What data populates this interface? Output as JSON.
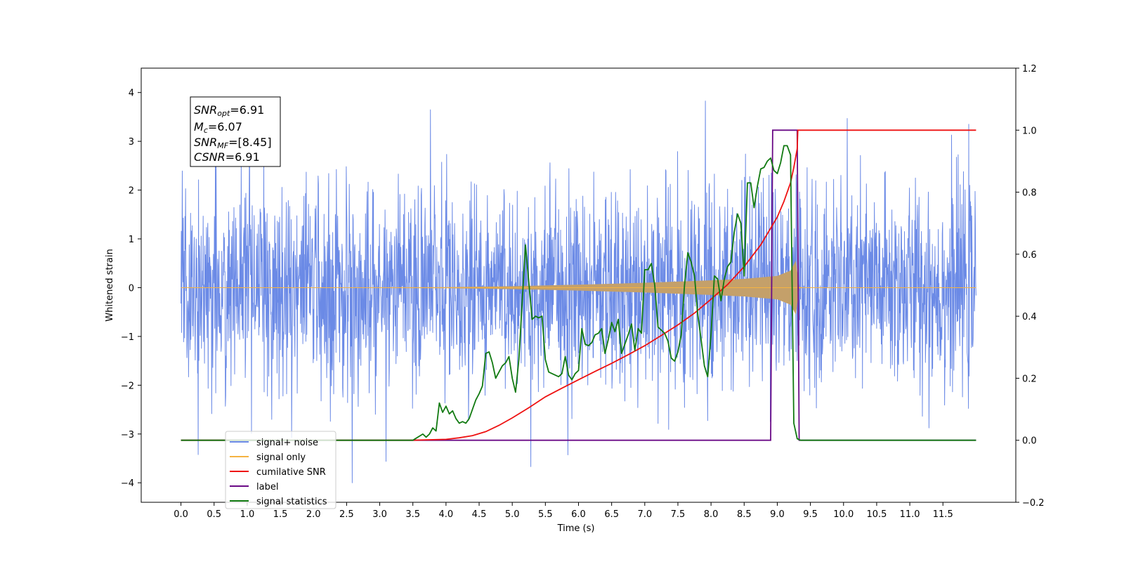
{
  "chart_data": {
    "type": "line",
    "xlabel": "Time (s)",
    "ylabel_left": "Whitened strain",
    "ylabel_right": "",
    "xlim": [
      -0.6,
      12.6
    ],
    "ylim_left": [
      -4.4,
      4.5
    ],
    "ylim_right": [
      -0.2,
      1.2
    ],
    "x_ticks": [
      0.0,
      0.5,
      1.0,
      1.5,
      2.0,
      2.5,
      3.0,
      3.5,
      4.0,
      4.5,
      5.0,
      5.5,
      6.0,
      6.5,
      7.0,
      7.5,
      8.0,
      8.5,
      9.0,
      9.5,
      10.0,
      10.5,
      11.0,
      11.5
    ],
    "x_tick_labels": [
      "0.0",
      "0.5",
      "1.0",
      "1.5",
      "2.0",
      "2.5",
      "3.0",
      "3.5",
      "4.0",
      "4.5",
      "5.0",
      "5.5",
      "6.0",
      "6.5",
      "7.0",
      "7.5",
      "8.0",
      "8.5",
      "9.0",
      "9.5",
      "10.0",
      "10.5",
      "11.0",
      "11.5"
    ],
    "y_ticks_left": [
      4,
      3,
      2,
      1,
      0,
      -1,
      -2,
      -3,
      -4
    ],
    "y_tick_labels_left": [
      "4",
      "3",
      "2",
      "1",
      "0",
      "−1",
      "−2",
      "−3",
      "−4"
    ],
    "y_ticks_right": [
      1.2,
      1.0,
      0.8,
      0.6,
      0.4,
      0.2,
      0.0,
      -0.2
    ],
    "y_tick_labels_right": [
      "1.2",
      "1.0",
      "0.8",
      "0.6",
      "0.4",
      "0.2",
      "0.0",
      "−0.2"
    ],
    "annotation": {
      "snr_opt": {
        "base": "SNR",
        "sub": "opt",
        "value": "=6.91"
      },
      "mc": {
        "base": "M",
        "sub": "c",
        "value": "=6.07"
      },
      "snr_mf": {
        "base": "SNR",
        "sub": "MF",
        "value": "=[8.45]"
      },
      "csnr": {
        "base": "CSNR",
        "value": "=6.91"
      }
    },
    "legend": {
      "placement": "lower-left",
      "entries": [
        "signal+ noise",
        "signal only",
        "cumilative SNR",
        "label",
        "signal statistics"
      ]
    },
    "colors": {
      "signal_noise": "#6b8ae6",
      "signal_only": "#f5b342",
      "signal_fill": "#c4a06a",
      "cumulative_snr": "#ee1111",
      "label": "#6a0a86",
      "signal_statistics": "#117a11"
    },
    "series": [
      {
        "name": "signal+ noise",
        "axis": "left",
        "kind": "noise",
        "x_range": [
          0.0,
          12.0
        ],
        "envelope_sigma": 1.0
      },
      {
        "name": "signal only",
        "axis": "left",
        "kind": "chirp",
        "x": [
          0.0,
          4.0,
          5.0,
          6.0,
          7.0,
          8.0,
          8.5,
          9.0,
          9.2,
          9.28,
          9.33,
          9.4,
          12.0
        ],
        "amplitude": [
          0.0,
          0.01,
          0.03,
          0.06,
          0.1,
          0.15,
          0.18,
          0.24,
          0.35,
          0.55,
          0.02,
          0.0,
          0.0
        ]
      },
      {
        "name": "cumilative SNR",
        "axis": "right",
        "x": [
          0.0,
          3.5,
          4.0,
          4.2,
          4.4,
          4.6,
          4.8,
          5.0,
          5.25,
          5.5,
          5.75,
          6.0,
          6.25,
          6.5,
          6.75,
          7.0,
          7.25,
          7.5,
          7.75,
          8.0,
          8.25,
          8.5,
          8.75,
          9.0,
          9.1,
          9.2,
          9.25,
          9.3,
          9.31,
          12.0
        ],
        "y": [
          0.0,
          0.0,
          0.003,
          0.008,
          0.015,
          0.028,
          0.048,
          0.072,
          0.105,
          0.14,
          0.168,
          0.195,
          0.222,
          0.248,
          0.276,
          0.305,
          0.338,
          0.372,
          0.41,
          0.455,
          0.502,
          0.56,
          0.63,
          0.72,
          0.77,
          0.83,
          0.88,
          0.94,
          1.0,
          1.0
        ]
      },
      {
        "name": "label",
        "axis": "right",
        "x": [
          0.0,
          8.9,
          8.93,
          9.3,
          9.33,
          12.0
        ],
        "y": [
          0.0,
          0.0,
          1.0,
          1.0,
          0.0,
          0.0
        ]
      },
      {
        "name": "signal statistics",
        "axis": "right",
        "x": [
          0.0,
          3.2,
          3.5,
          3.65,
          3.7,
          3.75,
          3.8,
          3.85,
          3.9,
          3.95,
          4.0,
          4.05,
          4.1,
          4.15,
          4.2,
          4.25,
          4.3,
          4.35,
          4.4,
          4.45,
          4.5,
          4.55,
          4.6,
          4.65,
          4.7,
          4.75,
          4.8,
          4.85,
          4.9,
          4.95,
          5.0,
          5.05,
          5.1,
          5.2,
          5.3,
          5.35,
          5.4,
          5.45,
          5.5,
          5.55,
          5.6,
          5.7,
          5.75,
          5.8,
          5.85,
          5.9,
          5.95,
          6.0,
          6.05,
          6.1,
          6.15,
          6.2,
          6.25,
          6.3,
          6.35,
          6.4,
          6.45,
          6.5,
          6.55,
          6.6,
          6.65,
          6.7,
          6.75,
          6.8,
          6.85,
          6.9,
          6.95,
          7.0,
          7.05,
          7.1,
          7.15,
          7.2,
          7.3,
          7.35,
          7.4,
          7.45,
          7.5,
          7.55,
          7.6,
          7.65,
          7.7,
          7.75,
          7.8,
          7.85,
          7.9,
          7.95,
          8.0,
          8.05,
          8.1,
          8.15,
          8.2,
          8.25,
          8.3,
          8.35,
          8.4,
          8.45,
          8.5,
          8.55,
          8.6,
          8.65,
          8.7,
          8.75,
          8.8,
          8.85,
          8.9,
          8.95,
          9.0,
          9.05,
          9.1,
          9.15,
          9.2,
          9.25,
          9.3,
          9.35,
          9.4,
          9.45,
          9.5,
          12.0
        ],
        "y": [
          0.0,
          0.0,
          0.0,
          0.02,
          0.01,
          0.02,
          0.04,
          0.03,
          0.12,
          0.09,
          0.11,
          0.085,
          0.095,
          0.07,
          0.055,
          0.06,
          0.055,
          0.07,
          0.1,
          0.13,
          0.15,
          0.175,
          0.28,
          0.285,
          0.25,
          0.2,
          0.22,
          0.24,
          0.25,
          0.27,
          0.2,
          0.155,
          0.26,
          0.63,
          0.39,
          0.4,
          0.395,
          0.4,
          0.26,
          0.22,
          0.215,
          0.205,
          0.215,
          0.27,
          0.21,
          0.195,
          0.215,
          0.225,
          0.36,
          0.31,
          0.305,
          0.315,
          0.34,
          0.345,
          0.36,
          0.28,
          0.325,
          0.38,
          0.35,
          0.39,
          0.28,
          0.31,
          0.34,
          0.375,
          0.29,
          0.36,
          0.345,
          0.55,
          0.55,
          0.57,
          0.5,
          0.365,
          0.345,
          0.32,
          0.265,
          0.255,
          0.285,
          0.34,
          0.5,
          0.605,
          0.575,
          0.53,
          0.405,
          0.325,
          0.24,
          0.205,
          0.34,
          0.53,
          0.52,
          0.45,
          0.52,
          0.56,
          0.575,
          0.67,
          0.73,
          0.7,
          0.53,
          0.83,
          0.83,
          0.75,
          0.82,
          0.875,
          0.88,
          0.9,
          0.91,
          0.87,
          0.86,
          0.895,
          0.95,
          0.95,
          0.92,
          0.055,
          0.005,
          0.0,
          0.0,
          0.0,
          0.0,
          0.0
        ]
      }
    ]
  }
}
